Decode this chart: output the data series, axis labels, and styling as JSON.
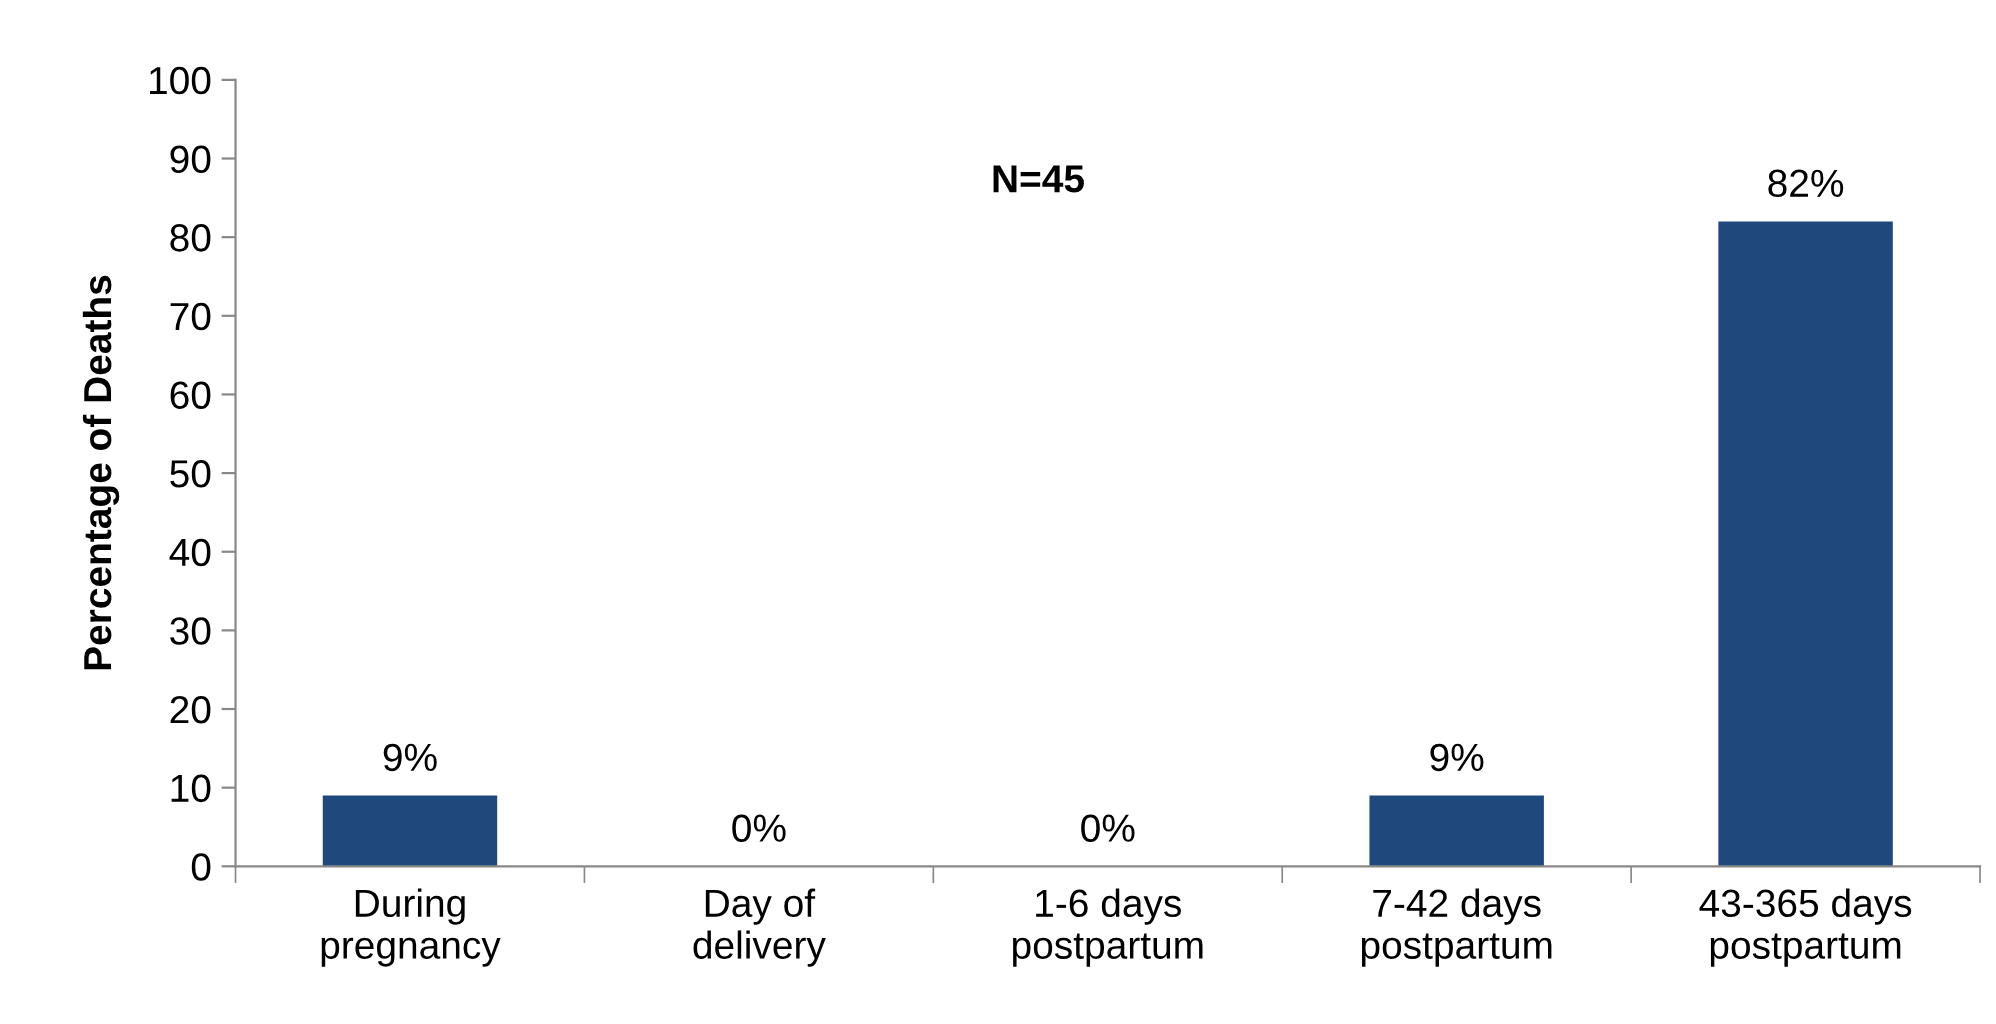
{
  "chart_data": {
    "type": "bar",
    "ylabel": "Percentage of Deaths",
    "categories": [
      "During\npregnancy",
      "Day of\ndelivery",
      "1-6 days\npostpartum",
      "7-42 days\npostpartum",
      "43-365 days\npostpartum"
    ],
    "values": [
      9,
      0,
      0,
      9,
      82
    ],
    "value_labels": [
      "9%",
      "0%",
      "0%",
      "9%",
      "82%"
    ],
    "color": "#1f497d",
    "ylim": [
      0,
      100
    ],
    "yticks": [
      0,
      10,
      20,
      30,
      40,
      50,
      60,
      70,
      80,
      90,
      100
    ],
    "annotations": [
      "N=45"
    ],
    "grid": false,
    "legend": false
  }
}
